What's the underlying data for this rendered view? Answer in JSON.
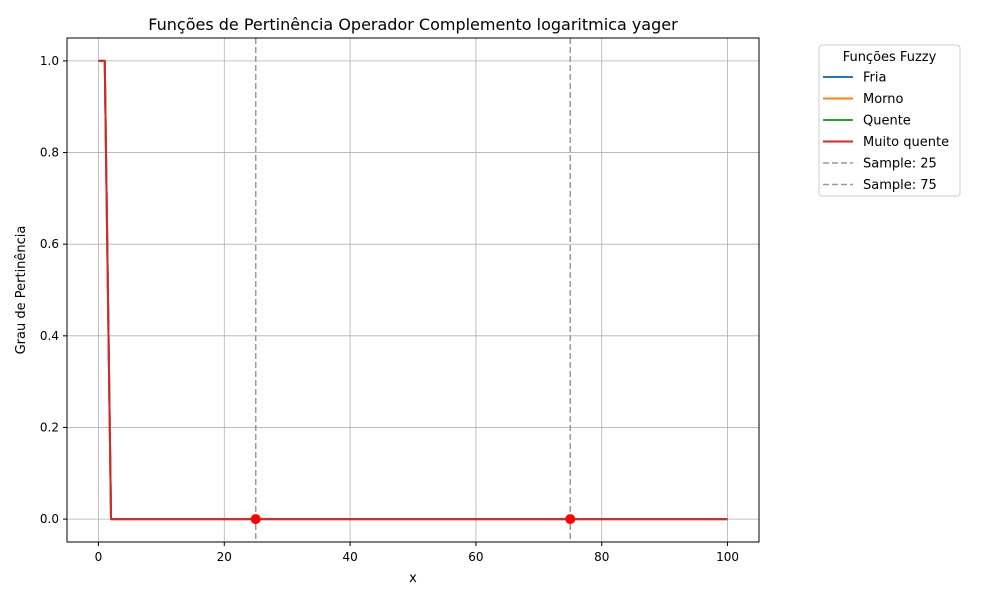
{
  "chart_data": {
    "type": "line",
    "title": "Funções de Pertinência Operador Complemento logaritmica yager",
    "xlabel": "x",
    "ylabel": "Grau de Pertinência",
    "xlim": [
      -5,
      105
    ],
    "ylim": [
      -0.05,
      1.05
    ],
    "xticks": [
      0,
      20,
      40,
      60,
      80,
      100
    ],
    "xtick_labels": [
      "0",
      "20",
      "40",
      "60",
      "80",
      "100"
    ],
    "yticks": [
      0,
      0.2,
      0.4,
      0.6,
      0.8,
      1.0
    ],
    "ytick_labels": [
      "0.0",
      "0.2",
      "0.4",
      "0.6",
      "0.8",
      "1.0"
    ],
    "grid": true,
    "legend": {
      "title": "Funções Fuzzy",
      "placement": "outside-top-right"
    },
    "series": [
      {
        "name": "Fria",
        "color": "#1f77b4",
        "x": [
          0,
          1,
          1.5,
          2,
          100
        ],
        "y": [
          1,
          1,
          0.5,
          0,
          0
        ]
      },
      {
        "name": "Morno",
        "color": "#ff7f0e",
        "x": [
          0,
          1,
          1.5,
          2,
          100
        ],
        "y": [
          1,
          1,
          0.5,
          0,
          0
        ]
      },
      {
        "name": "Quente",
        "color": "#2ca02c",
        "x": [
          0,
          1,
          1.5,
          2,
          100
        ],
        "y": [
          1,
          1,
          0.5,
          0,
          0
        ]
      },
      {
        "name": "Muito quente",
        "color": "#d62728",
        "x": [
          0,
          1,
          1.5,
          2,
          100
        ],
        "y": [
          1,
          1,
          0.5,
          0,
          0
        ]
      }
    ],
    "samples": [
      {
        "name": "Sample: 25",
        "x": 25,
        "y": 0,
        "color": "#999999",
        "marker_color": "#ff0000"
      },
      {
        "name": "Sample: 75",
        "x": 75,
        "y": 0,
        "color": "#999999",
        "marker_color": "#ff0000"
      }
    ]
  }
}
